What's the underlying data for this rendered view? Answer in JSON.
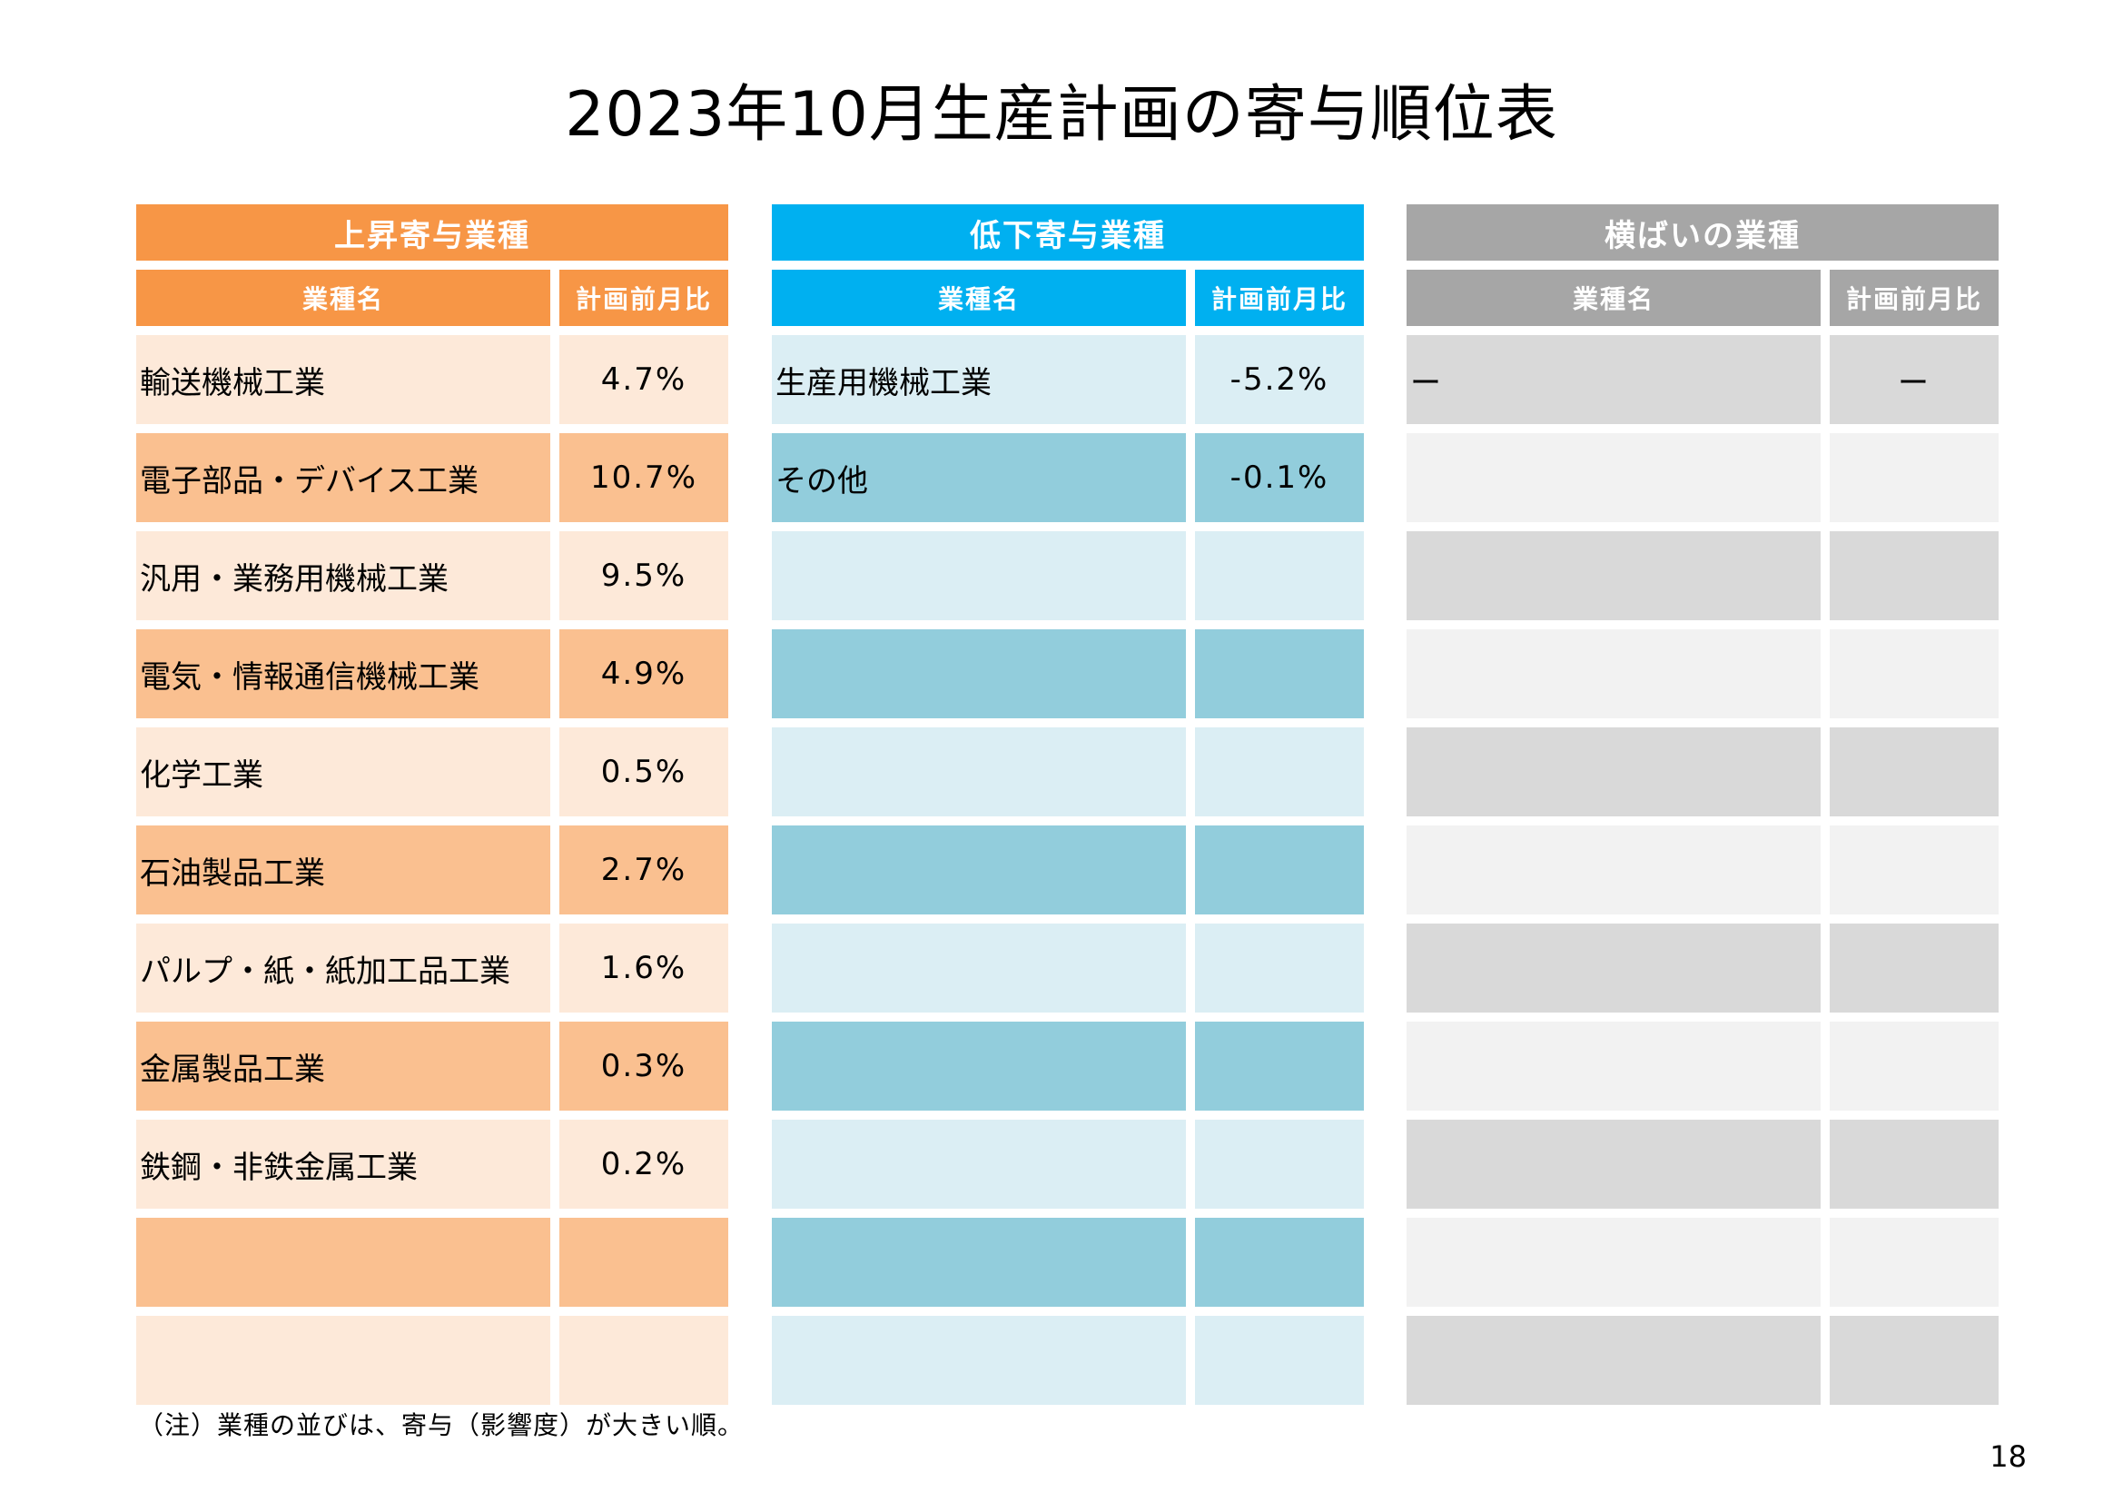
{
  "title": "2023年10月生産計画の寄与順位表",
  "note": "（注）業種の並びは、寄与（影響度）が大きい順。",
  "page_number": "18",
  "colors": {
    "up_header": "#f79646",
    "up_row_light": "#fde9d9",
    "up_row_dark": "#fac090",
    "down_header": "#00b0f0",
    "down_row_light": "#dbeef4",
    "down_row_dark": "#92cddc",
    "flat_header": "#a6a6a6",
    "flat_row_dark": "#d9d9d9",
    "flat_row_light": "#f2f2f2"
  },
  "tables": {
    "up": {
      "header": "上昇寄与業種",
      "col_name": "業種名",
      "col_value": "計画前月比",
      "rows": [
        {
          "name": "輸送機械工業",
          "value": "4.7%"
        },
        {
          "name": "電子部品・デバイス工業",
          "value": "10.7%"
        },
        {
          "name": "汎用・業務用機械工業",
          "value": "9.5%"
        },
        {
          "name": "電気・情報通信機械工業",
          "value": "4.9%"
        },
        {
          "name": "化学工業",
          "value": "0.5%"
        },
        {
          "name": "石油製品工業",
          "value": "2.7%"
        },
        {
          "name": "パルプ・紙・紙加工品工業",
          "value": "1.6%"
        },
        {
          "name": "金属製品工業",
          "value": "0.3%"
        },
        {
          "name": "鉄鋼・非鉄金属工業",
          "value": "0.2%"
        },
        {
          "name": "",
          "value": ""
        },
        {
          "name": "",
          "value": ""
        }
      ]
    },
    "down": {
      "header": "低下寄与業種",
      "col_name": "業種名",
      "col_value": "計画前月比",
      "rows": [
        {
          "name": "生産用機械工業",
          "value": "-5.2%"
        },
        {
          "name": "その他",
          "value": "-0.1%"
        },
        {
          "name": "",
          "value": ""
        },
        {
          "name": "",
          "value": ""
        },
        {
          "name": "",
          "value": ""
        },
        {
          "name": "",
          "value": ""
        },
        {
          "name": "",
          "value": ""
        },
        {
          "name": "",
          "value": ""
        },
        {
          "name": "",
          "value": ""
        },
        {
          "name": "",
          "value": ""
        },
        {
          "name": "",
          "value": ""
        }
      ]
    },
    "flat": {
      "header": "横ばいの業種",
      "col_name": "業種名",
      "col_value": "計画前月比",
      "rows": [
        {
          "name": "ー",
          "value": "ー"
        },
        {
          "name": "",
          "value": ""
        },
        {
          "name": "",
          "value": ""
        },
        {
          "name": "",
          "value": ""
        },
        {
          "name": "",
          "value": ""
        },
        {
          "name": "",
          "value": ""
        },
        {
          "name": "",
          "value": ""
        },
        {
          "name": "",
          "value": ""
        },
        {
          "name": "",
          "value": ""
        },
        {
          "name": "",
          "value": ""
        },
        {
          "name": "",
          "value": ""
        }
      ]
    }
  }
}
